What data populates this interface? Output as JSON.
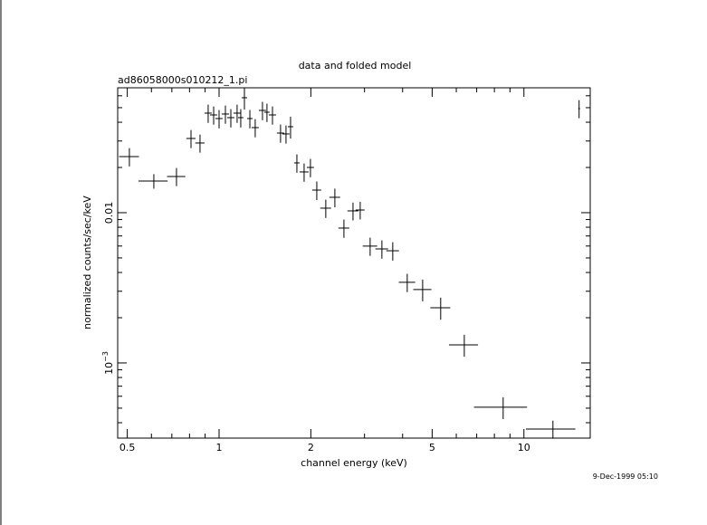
{
  "chart_data": {
    "type": "errorbar",
    "title": "data and folded model",
    "subtitle": "ad86058000s010212_1.pi",
    "xlabel": "channel energy (keV)",
    "ylabel": "normalized counts/sec/keV",
    "timestamp": "9-Dec-1999 05:10",
    "xlog": true,
    "ylog": true,
    "color": "#000000",
    "xlim": [
      0.465,
      16.5
    ],
    "ylim": [
      0.000316,
      0.0678
    ],
    "xticks": [
      0.5,
      1,
      2,
      5,
      10
    ],
    "xminor": [
      0.6,
      0.7,
      0.8,
      0.9,
      3,
      4,
      6,
      7,
      8,
      9
    ],
    "yticks": [
      0.01,
      {
        "value": 0.001,
        "label": "10",
        "superscript": "−3"
      }
    ],
    "yminor": [
      0.0004,
      0.0005,
      0.0006,
      0.0007,
      0.0008,
      0.0009,
      0.002,
      0.003,
      0.004,
      0.005,
      0.006,
      0.007,
      0.008,
      0.009,
      0.02,
      0.03,
      0.04,
      0.05,
      0.06
    ],
    "x": [
      0.508,
      0.611,
      0.725,
      0.809,
      0.866,
      0.921,
      0.96,
      1.0,
      1.049,
      1.093,
      1.146,
      1.178,
      1.211,
      1.262,
      1.314,
      1.388,
      1.436,
      1.497,
      1.591,
      1.658,
      1.716,
      1.8,
      1.901,
      1.994,
      2.092,
      2.239,
      2.398,
      2.568,
      2.75,
      2.904,
      3.13,
      3.421,
      3.713,
      4.142,
      4.654,
      5.333,
      6.374,
      8.549,
      12.45,
      15.17
    ],
    "xerr": [
      0.038,
      0.067,
      0.05,
      0.028,
      0.03,
      0.025,
      0.026,
      0.027,
      0.029,
      0.03,
      0.031,
      0.024,
      0.025,
      0.026,
      0.036,
      0.038,
      0.029,
      0.041,
      0.043,
      0.045,
      0.035,
      0.037,
      0.065,
      0.054,
      0.071,
      0.092,
      0.098,
      0.105,
      0.113,
      0.099,
      0.171,
      0.164,
      0.178,
      0.255,
      0.318,
      0.401,
      0.697,
      1.69,
      2.3,
      0.1
    ],
    "values": [
      0.02362,
      0.01625,
      0.01742,
      0.03119,
      0.0291,
      0.046,
      0.04473,
      0.04232,
      0.04536,
      0.04291,
      0.046,
      0.04291,
      0.05823,
      0.04232,
      0.03684,
      0.04795,
      0.04664,
      0.04473,
      0.03389,
      0.03343,
      0.03736,
      0.02145,
      0.01867,
      0.02001,
      0.01414,
      0.01072,
      0.01266,
      0.0079,
      0.01028,
      0.01042,
      0.00599,
      0.00574,
      0.00558,
      0.00344,
      0.00308,
      0.00233,
      0.00132,
      0.000507,
      0.000363,
      0.0493
    ],
    "yerr": [
      0.0033,
      0.0018,
      0.0024,
      0.0043,
      0.004,
      0.0064,
      0.0062,
      0.0059,
      0.0063,
      0.006,
      0.0064,
      0.006,
      0.0097,
      0.0059,
      0.0051,
      0.0067,
      0.0065,
      0.0062,
      0.0047,
      0.0046,
      0.0062,
      0.003,
      0.0026,
      0.0028,
      0.002,
      0.0015,
      0.0018,
      0.0011,
      0.0014,
      0.0014,
      0.00083,
      0.0008,
      0.00078,
      0.00048,
      0.00051,
      0.00039,
      0.00022,
      8.4e-05,
      5e-05,
      0.0068
    ]
  }
}
